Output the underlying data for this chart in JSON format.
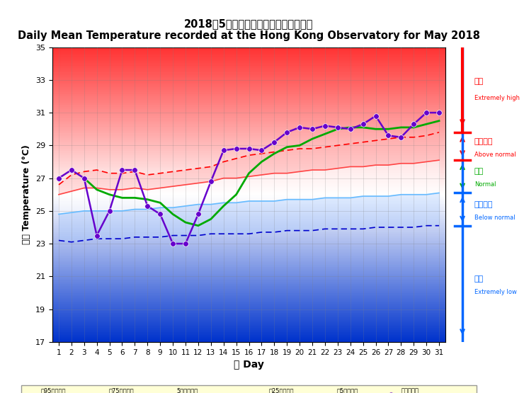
{
  "title_zh": "2018年5月香港天文台錄得的日平均氣溫",
  "title_en": "Daily Mean Temperature recorded at the Hong Kong Observatory for May 2018",
  "xlabel_zh": "日 Day",
  "ylabel_zh": "氣溫 Temperature (°C)",
  "days": [
    1,
    2,
    3,
    4,
    5,
    6,
    7,
    8,
    9,
    10,
    11,
    12,
    13,
    14,
    15,
    16,
    17,
    18,
    19,
    20,
    21,
    22,
    23,
    24,
    25,
    26,
    27,
    28,
    29,
    30,
    31
  ],
  "daily_mean": [
    27.0,
    27.5,
    27.0,
    23.5,
    25.0,
    27.5,
    27.5,
    25.3,
    24.8,
    23.0,
    23.0,
    24.8,
    26.8,
    28.7,
    28.8,
    28.8,
    28.7,
    29.2,
    29.8,
    30.1,
    30.0,
    30.2,
    30.1,
    30.0,
    30.3,
    30.8,
    29.6,
    29.5,
    30.3,
    31.0,
    31.0
  ],
  "p95": [
    26.6,
    27.2,
    27.4,
    27.5,
    27.3,
    27.3,
    27.4,
    27.2,
    27.3,
    27.4,
    27.5,
    27.6,
    27.7,
    28.0,
    28.2,
    28.4,
    28.5,
    28.6,
    28.7,
    28.8,
    28.8,
    28.9,
    29.0,
    29.1,
    29.2,
    29.3,
    29.4,
    29.5,
    29.5,
    29.6,
    29.8
  ],
  "p75": [
    26.0,
    26.2,
    26.4,
    26.4,
    26.3,
    26.3,
    26.4,
    26.3,
    26.4,
    26.5,
    26.6,
    26.7,
    26.8,
    27.0,
    27.0,
    27.1,
    27.2,
    27.3,
    27.3,
    27.4,
    27.5,
    27.5,
    27.6,
    27.7,
    27.7,
    27.8,
    27.8,
    27.9,
    27.9,
    28.0,
    28.1
  ],
  "p25": [
    24.8,
    24.9,
    25.0,
    25.0,
    25.0,
    25.0,
    25.1,
    25.1,
    25.2,
    25.2,
    25.3,
    25.4,
    25.4,
    25.5,
    25.5,
    25.6,
    25.6,
    25.6,
    25.7,
    25.7,
    25.7,
    25.8,
    25.8,
    25.8,
    25.9,
    25.9,
    25.9,
    26.0,
    26.0,
    26.0,
    26.1
  ],
  "p5": [
    23.2,
    23.1,
    23.2,
    23.3,
    23.3,
    23.3,
    23.4,
    23.4,
    23.4,
    23.5,
    23.5,
    23.5,
    23.6,
    23.6,
    23.6,
    23.6,
    23.7,
    23.7,
    23.8,
    23.8,
    23.8,
    23.9,
    23.9,
    23.9,
    23.9,
    24.0,
    24.0,
    24.0,
    24.0,
    24.1,
    24.1
  ],
  "running5": [
    null,
    null,
    27.0,
    26.3,
    26.0,
    25.8,
    25.8,
    25.7,
    25.5,
    24.8,
    24.3,
    24.1,
    24.5,
    25.3,
    26.0,
    27.3,
    28.0,
    28.5,
    28.9,
    29.0,
    29.4,
    29.7,
    30.0,
    30.1,
    30.1,
    30.0,
    30.0,
    30.1,
    30.1,
    30.3,
    30.5
  ],
  "ylim": [
    17,
    35
  ],
  "yticks": [
    17,
    19,
    21,
    23,
    25,
    27,
    29,
    31,
    33,
    35
  ],
  "bg_top_color": "#FF4444",
  "bg_bottom_color": "#3333CC",
  "label_extremely_high_zh": "極高",
  "label_extremely_high_en": "Extremely high",
  "label_above_normal_zh": "高於正常",
  "label_above_normal_en": "Above normal",
  "label_normal_zh": "正常",
  "label_normal_en": "Normal",
  "label_below_normal_zh": "低於正常",
  "label_below_normal_en": "Below normal",
  "label_extremely_low_zh": "極低",
  "label_extremely_low_en": "Extremely low",
  "color_p95": "#FF0000",
  "color_p75": "#FF6666",
  "color_p25": "#66CCFF",
  "color_p5": "#0000CC",
  "color_running5": "#00AA00",
  "color_daily": "#6600CC",
  "color_arrow_red": "#FF0000",
  "color_arrow_blue": "#0066FF",
  "color_arrow_green": "#00AA00"
}
